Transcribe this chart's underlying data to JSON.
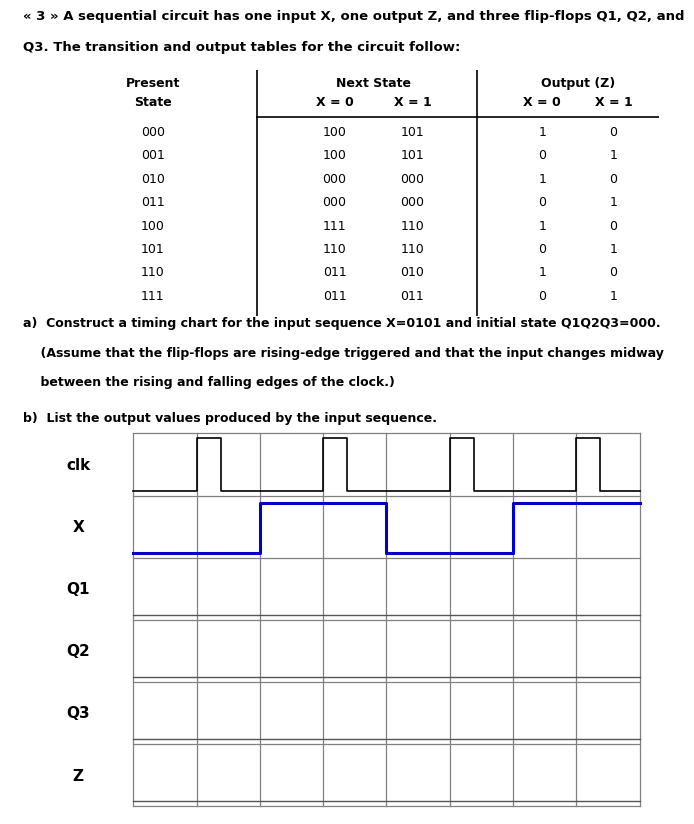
{
  "title_line1": "« 3 » A sequential circuit has one input X, one output Z, and three flip-flops Q1, Q2, and",
  "title_line2": "Q3. The transition and output tables for the circuit follow:",
  "table": {
    "present_states": [
      "000",
      "001",
      "010",
      "011",
      "100",
      "101",
      "110",
      "111"
    ],
    "next_x0": [
      "100",
      "100",
      "000",
      "000",
      "111",
      "110",
      "011",
      "011"
    ],
    "next_x1": [
      "101",
      "101",
      "000",
      "000",
      "110",
      "110",
      "010",
      "011"
    ],
    "out_x0": [
      "1",
      "0",
      "1",
      "0",
      "1",
      "0",
      "1",
      "0"
    ],
    "out_x1": [
      "0",
      "1",
      "0",
      "1",
      "0",
      "1",
      "0",
      "1"
    ]
  },
  "question_a_line1": "a)  Construct a timing chart for the input sequence X=0101 and initial state Q1Q2Q3=000.",
  "question_a_line2": "    (Assume that the flip-flops are rising-edge triggered and that the input changes midway",
  "question_a_line3": "    between the rising and falling edges of the clock.)",
  "question_b": "b)  List the output values produced by the input sequence.",
  "signal_labels": [
    "clk",
    "X",
    "Q1",
    "Q2",
    "Q3",
    "Z"
  ],
  "clk_color": "#000000",
  "x_color": "#0000cc",
  "signal_color": "#555555",
  "grid_color": "#808080",
  "background_color": "#ffffff",
  "n_cols": 8,
  "clk_n_pulses": 4,
  "x_values": [
    0,
    1,
    0,
    1
  ]
}
